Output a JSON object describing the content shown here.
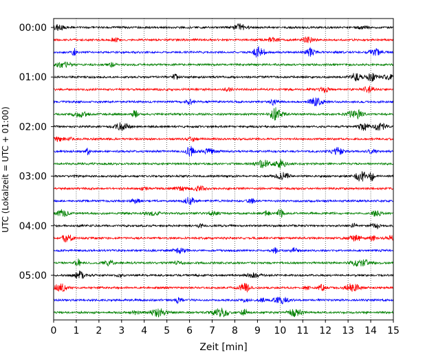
{
  "chart_data": {
    "type": "line",
    "title": "",
    "xlabel": "Zeit  [min]",
    "ylabel": "UTC (Lokalzeit = UTC + 01:00)",
    "xlim": [
      0,
      15
    ],
    "x_ticks": [
      "0",
      "1",
      "2",
      "3",
      "4",
      "5",
      "6",
      "7",
      "8",
      "9",
      "10",
      "11",
      "12",
      "13",
      "14",
      "15"
    ],
    "y_ticks": [
      "00:00",
      "01:00",
      "02:00",
      "03:00",
      "04:00",
      "05:00"
    ],
    "trace_colors": [
      "#000000",
      "#ff0000",
      "#0000ff",
      "#008000"
    ],
    "trace_interval_minutes": 15,
    "trace_count": 24,
    "grid": "vertical dotted lines at each minute",
    "legend": "none"
  }
}
